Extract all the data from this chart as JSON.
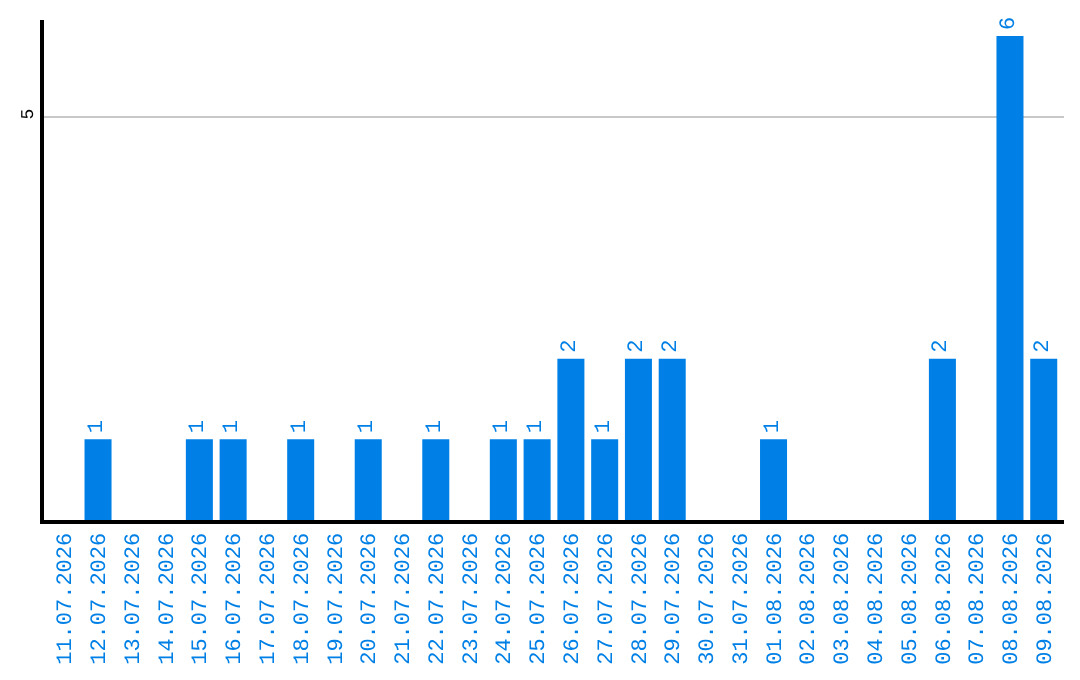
{
  "chart_data": {
    "type": "bar",
    "categories": [
      "11.07.2026",
      "12.07.2026",
      "13.07.2026",
      "14.07.2026",
      "15.07.2026",
      "16.07.2026",
      "17.07.2026",
      "18.07.2026",
      "19.07.2026",
      "20.07.2026",
      "21.07.2026",
      "22.07.2026",
      "23.07.2026",
      "24.07.2026",
      "25.07.2026",
      "26.07.2026",
      "27.07.2026",
      "28.07.2026",
      "29.07.2026",
      "30.07.2026",
      "31.07.2026",
      "01.08.2026",
      "02.08.2026",
      "03.08.2026",
      "04.08.2026",
      "05.08.2026",
      "06.08.2026",
      "07.08.2026",
      "08.08.2026",
      "09.08.2026"
    ],
    "values": [
      0,
      1,
      0,
      0,
      1,
      1,
      0,
      1,
      0,
      1,
      0,
      1,
      0,
      1,
      1,
      2,
      1,
      2,
      2,
      0,
      0,
      1,
      0,
      0,
      0,
      0,
      2,
      0,
      6,
      2
    ],
    "value_labels": [
      null,
      "1",
      null,
      null,
      "1",
      "1",
      null,
      "1",
      null,
      "1",
      null,
      "1",
      null,
      "1",
      "1",
      "2",
      "1",
      "2",
      "2",
      null,
      null,
      "1",
      null,
      null,
      null,
      null,
      "2",
      null,
      "6",
      "2"
    ],
    "color": "#0080e6",
    "ylim": [
      0,
      6.2
    ],
    "yticks": [
      5
    ],
    "grid": "y",
    "legend": false
  }
}
